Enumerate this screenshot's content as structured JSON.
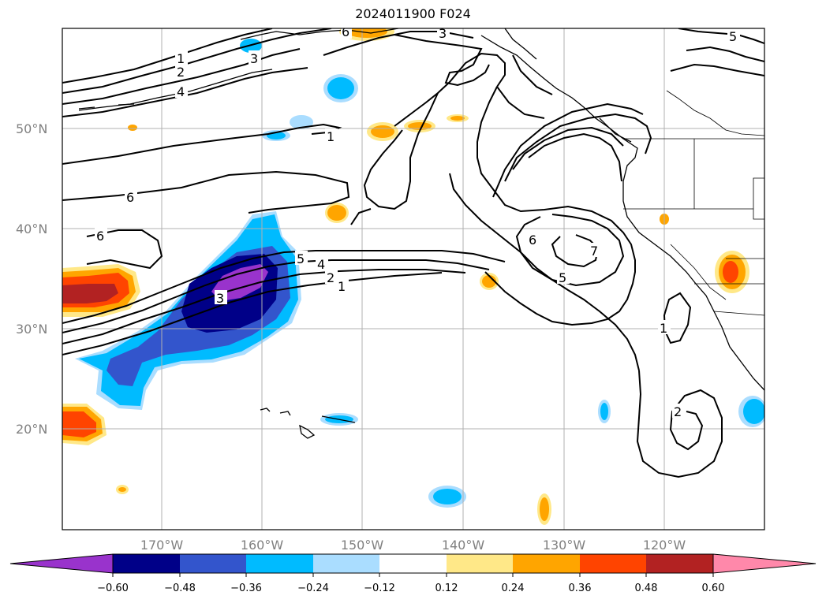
{
  "title": "2024011900 F024",
  "map": {
    "lat_labels": [
      "50°N",
      "40°N",
      "30°N",
      "20°N"
    ],
    "lon_labels": [
      "170°W",
      "160°W",
      "150°W",
      "140°W",
      "130°W",
      "120°W"
    ],
    "contour_labels": [
      "1",
      "2",
      "3",
      "4",
      "5",
      "6",
      "7"
    ]
  },
  "colorbar": {
    "ticks": [
      "−0.60",
      "−0.48",
      "−0.36",
      "−0.24",
      "−0.12",
      "0.12",
      "0.24",
      "0.36",
      "0.48",
      "0.60"
    ],
    "colors": [
      "#9933cc",
      "#000088",
      "#3355cc",
      "#00bbff",
      "#aaddff",
      "#ffffff",
      "#ffe888",
      "#ffa500",
      "#ff4400",
      "#b22222",
      "#ff88aa"
    ]
  }
}
